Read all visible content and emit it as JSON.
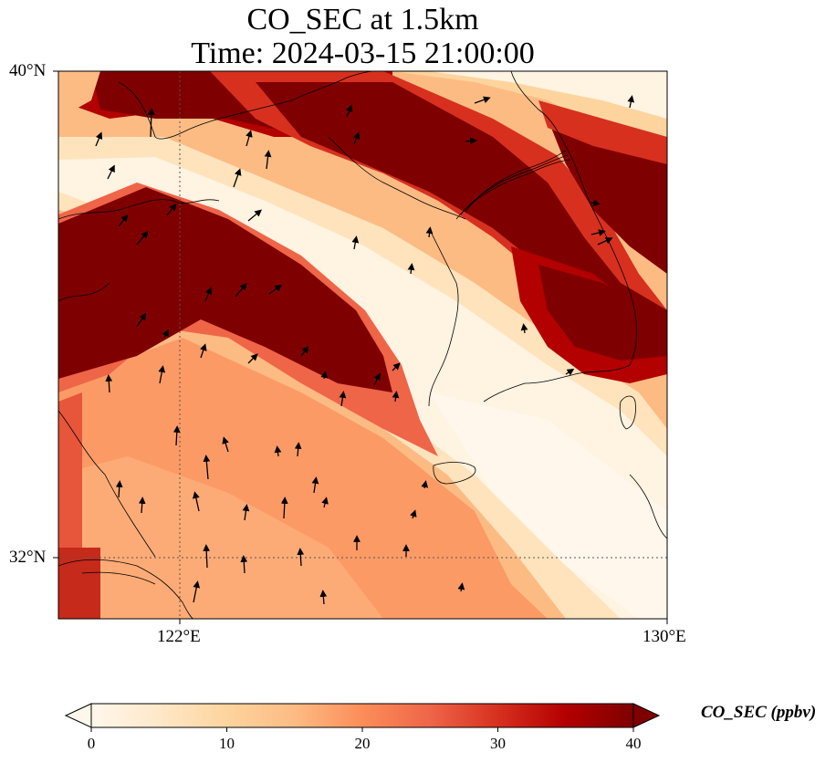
{
  "title": {
    "line1": "CO_SEC at 1.5km",
    "line2": "Time: 2024-03-15 21:00:00"
  },
  "map": {
    "variable": "CO_SEC",
    "height": "1.5km",
    "time": "2024-03-15 21:00:00",
    "lat_range": [
      31.2,
      40.0
    ],
    "lon_range": [
      120.4,
      130.0
    ],
    "gridlines": {
      "lat": [
        32
      ],
      "lon": [
        122
      ]
    }
  },
  "axes": {
    "y_ticks": [
      {
        "value": 40,
        "label": "40°N"
      },
      {
        "value": 32,
        "label": "32°N"
      }
    ],
    "x_ticks": [
      {
        "value": 122,
        "label": "122°E"
      },
      {
        "value": 130,
        "label": "130°E"
      }
    ]
  },
  "colorbar": {
    "label": "CO_SEC (ppbv)",
    "colormap": "OrRd",
    "min": 0,
    "max": 40,
    "extend": "both",
    "ticks": [
      {
        "value": 0,
        "label": "0"
      },
      {
        "value": 10,
        "label": "10"
      },
      {
        "value": 20,
        "label": "20"
      },
      {
        "value": 30,
        "label": "30"
      },
      {
        "value": 40,
        "label": "40"
      }
    ],
    "colors": [
      "#fff7ec",
      "#fee8c8",
      "#fdd49e",
      "#fdbb84",
      "#fc8d59",
      "#ef6548",
      "#d7301f",
      "#b30000",
      "#7f0000"
    ]
  }
}
